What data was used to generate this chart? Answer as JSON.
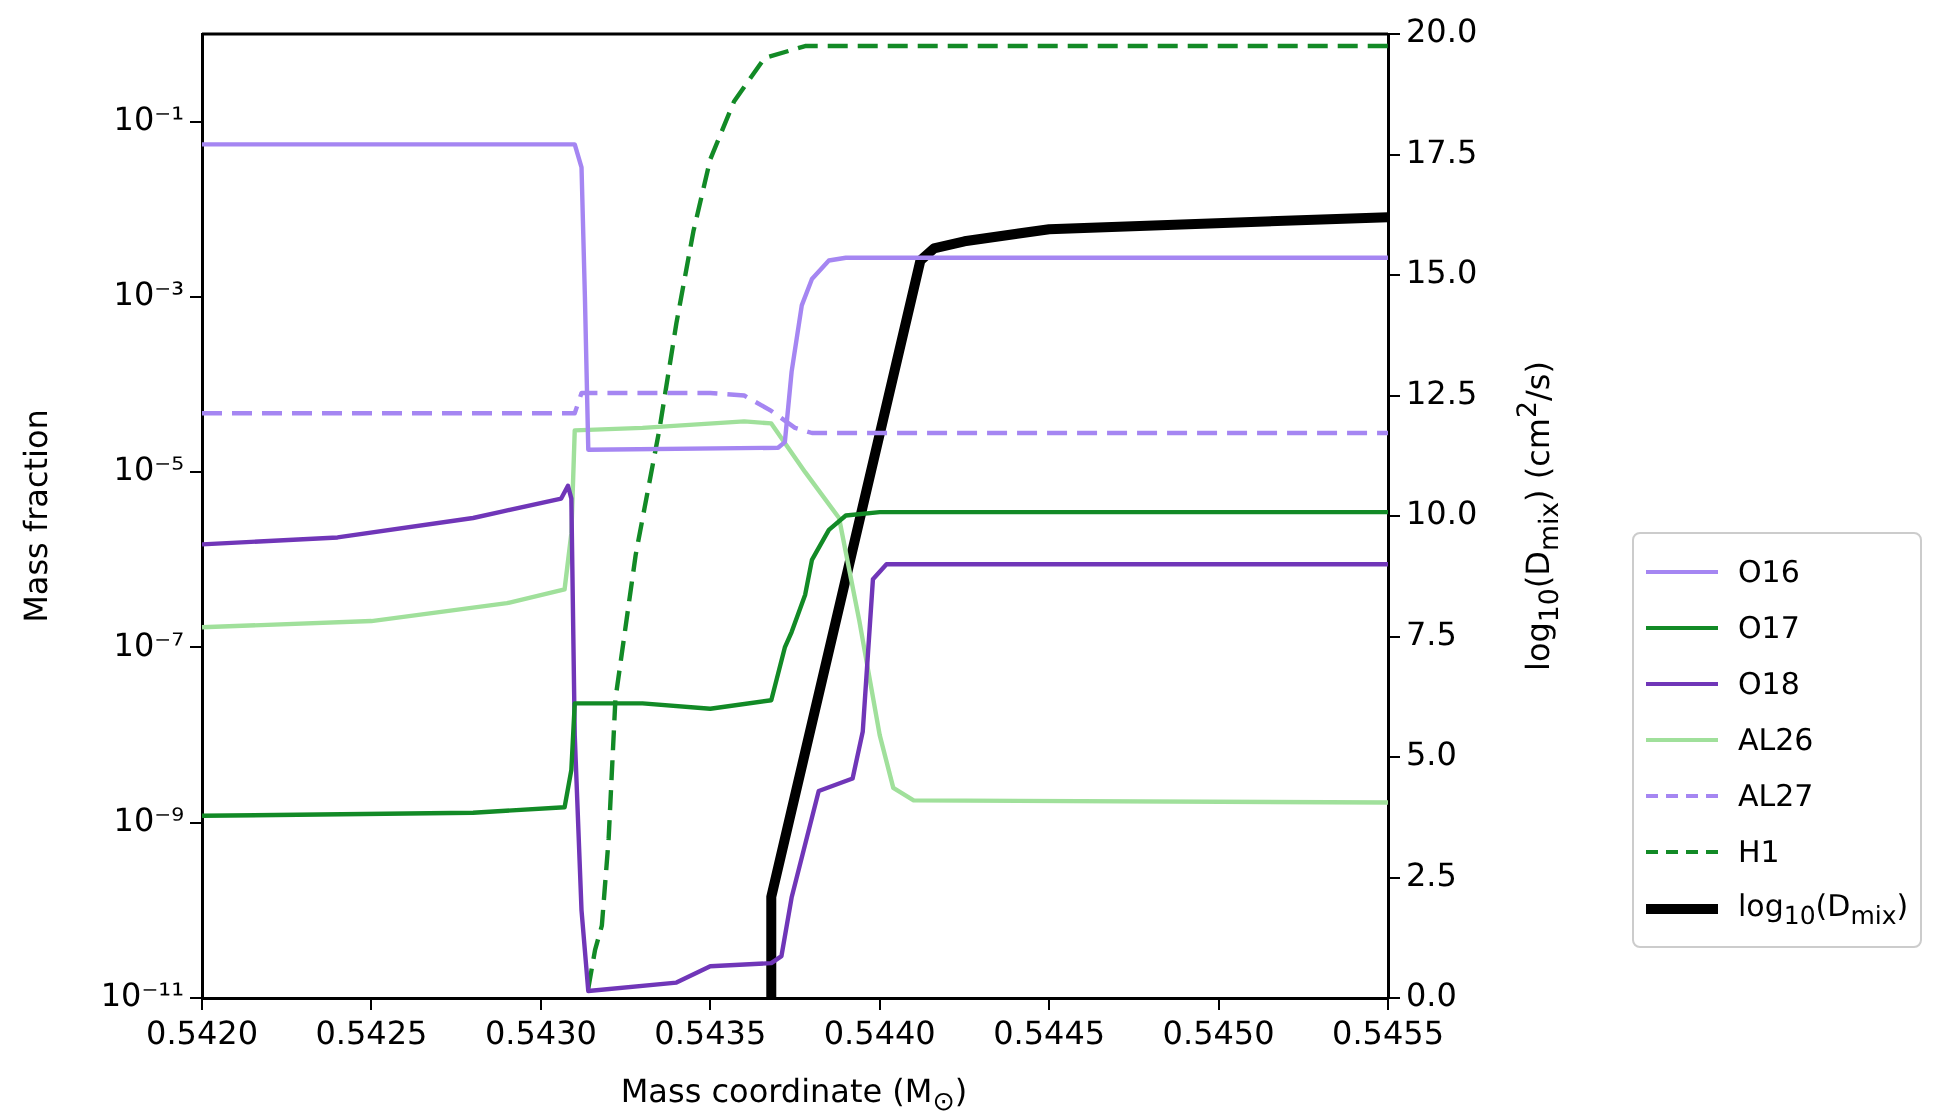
{
  "chart_data": {
    "type": "line",
    "xlabel": "Mass coordinate (M$_{⊙}$)",
    "ylabel": "Mass fraction",
    "y2label": "log$_{10}$(D$_{mix}$) (cm$^{2}$/s)",
    "xlim": [
      0.542,
      0.5455
    ],
    "xticks": [
      {
        "value": 0.542,
        "label": "0.5420"
      },
      {
        "value": 0.5425,
        "label": "0.5425"
      },
      {
        "value": 0.543,
        "label": "0.5430"
      },
      {
        "value": 0.5435,
        "label": "0.5435"
      },
      {
        "value": 0.544,
        "label": "0.5440"
      },
      {
        "value": 0.5445,
        "label": "0.5445"
      },
      {
        "value": 0.545,
        "label": "0.5450"
      },
      {
        "value": 0.5455,
        "label": "0.5455"
      }
    ],
    "log": "y",
    "ylim": [
      1e-11,
      1
    ],
    "yticks": [
      {
        "value": 1e-11,
        "label": "10⁻¹¹"
      },
      {
        "value": 1e-09,
        "label": "10⁻⁹"
      },
      {
        "value": 1e-07,
        "label": "10⁻⁷"
      },
      {
        "value": 1e-05,
        "label": "10⁻⁵"
      },
      {
        "value": 0.001,
        "label": "10⁻³"
      },
      {
        "value": 0.1,
        "label": "10⁻¹"
      }
    ],
    "y2lim": [
      0,
      20
    ],
    "y2ticks": [
      {
        "value": 0,
        "label": "0.0"
      },
      {
        "value": 2.5,
        "label": "2.5"
      },
      {
        "value": 5,
        "label": "5.0"
      },
      {
        "value": 7.5,
        "label": "7.5"
      },
      {
        "value": 10,
        "label": "10.0"
      },
      {
        "value": 12.5,
        "label": "12.5"
      },
      {
        "value": 15,
        "label": "15.0"
      },
      {
        "value": 17.5,
        "label": "17.5"
      },
      {
        "value": 20,
        "label": "20.0"
      }
    ],
    "grid": false,
    "legend": "right",
    "marker": "none",
    "series": [
      {
        "name": "O16",
        "color": "#a586f2",
        "x": [
          0.542,
          0.5431,
          0.54312,
          0.54313,
          0.54314,
          0.5437,
          0.54372,
          0.54374,
          0.54377,
          0.5438,
          0.54385,
          0.5439,
          0.5455
        ],
        "values": [
          0.055,
          0.055,
          0.03,
          0.001,
          1.8e-05,
          1.9e-05,
          2.2e-05,
          0.00014,
          0.0008,
          0.0016,
          0.0026,
          0.0028,
          0.0028
        ]
      },
      {
        "name": "O17",
        "color": "#128a26",
        "x": [
          0.542,
          0.5428,
          0.54307,
          0.54309,
          0.5431,
          0.5433,
          0.5435,
          0.54368,
          0.54372,
          0.54374,
          0.54378,
          0.5438,
          0.54385,
          0.5439,
          0.544,
          0.5455
        ],
        "values": [
          1.2e-09,
          1.3e-09,
          1.5e-09,
          4e-09,
          2.3e-08,
          2.3e-08,
          2e-08,
          2.5e-08,
          1e-07,
          1.5e-07,
          4e-07,
          1e-06,
          2.2e-06,
          3.2e-06,
          3.5e-06,
          3.5e-06
        ]
      },
      {
        "name": "O18",
        "color": "#7036b8",
        "x": [
          0.542,
          0.5424,
          0.5428,
          0.54306,
          0.54308,
          0.54309,
          0.5431,
          0.54312,
          0.54314,
          0.5434,
          0.5435,
          0.54368,
          0.54371,
          0.54374,
          0.54382,
          0.54392,
          0.54395,
          0.54398,
          0.54402,
          0.5455
        ],
        "values": [
          1.5e-06,
          1.8e-06,
          3e-06,
          5e-06,
          7e-06,
          5e-06,
          1e-08,
          1e-10,
          1.2e-11,
          1.5e-11,
          2.3e-11,
          2.5e-11,
          3e-11,
          1.4e-10,
          2.3e-09,
          3.2e-09,
          1.1e-08,
          6e-07,
          8.9e-07,
          8.9e-07
        ]
      },
      {
        "name": "AL26",
        "color": "#a0e09b",
        "x": [
          0.542,
          0.5425,
          0.5429,
          0.54307,
          0.54309,
          0.5431,
          0.5433,
          0.5436,
          0.54368,
          0.54378,
          0.54388,
          0.54394,
          0.544,
          0.54404,
          0.5441,
          0.5455
        ],
        "values": [
          1.7e-07,
          2e-07,
          3.2e-07,
          4.6e-07,
          2e-06,
          3e-05,
          3.2e-05,
          3.8e-05,
          3.6e-05,
          1e-05,
          3e-06,
          2e-07,
          1e-08,
          2.5e-09,
          1.8e-09,
          1.7e-09
        ]
      },
      {
        "name": "AL27",
        "color": "#a586f2",
        "line_style": "dashed",
        "x": [
          0.542,
          0.5431,
          0.54312,
          0.5435,
          0.5436,
          0.54368,
          0.54375,
          0.5438,
          0.5455
        ],
        "values": [
          4.7e-05,
          4.7e-05,
          8e-05,
          8e-05,
          7.5e-05,
          5e-05,
          3.2e-05,
          2.8e-05,
          2.8e-05
        ]
      },
      {
        "name": "H1",
        "color": "#128a26",
        "line_style": "dashed",
        "axis": "y2",
        "x": [
          0.54314,
          0.54316,
          0.54318,
          0.5432,
          0.54322,
          0.54328,
          0.54335,
          0.5434,
          0.54345,
          0.5435,
          0.54357,
          0.54366,
          0.54378,
          0.5455
        ],
        "values": [
          0.2,
          1.0,
          1.5,
          3.3,
          6.2,
          9.2,
          11.8,
          14,
          15.9,
          17.4,
          18.6,
          19.5,
          19.75,
          19.75
        ]
      },
      {
        "name": "log$_{10}$(D$_{mix}$)",
        "color": "#000000",
        "axis": "y2",
        "x": [
          0.54368,
          0.54368,
          0.54412,
          0.54416,
          0.54425,
          0.5445,
          0.5455
        ],
        "values": [
          0,
          2.1,
          15.3,
          15.55,
          15.7,
          15.95,
          16.2
        ]
      }
    ]
  }
}
